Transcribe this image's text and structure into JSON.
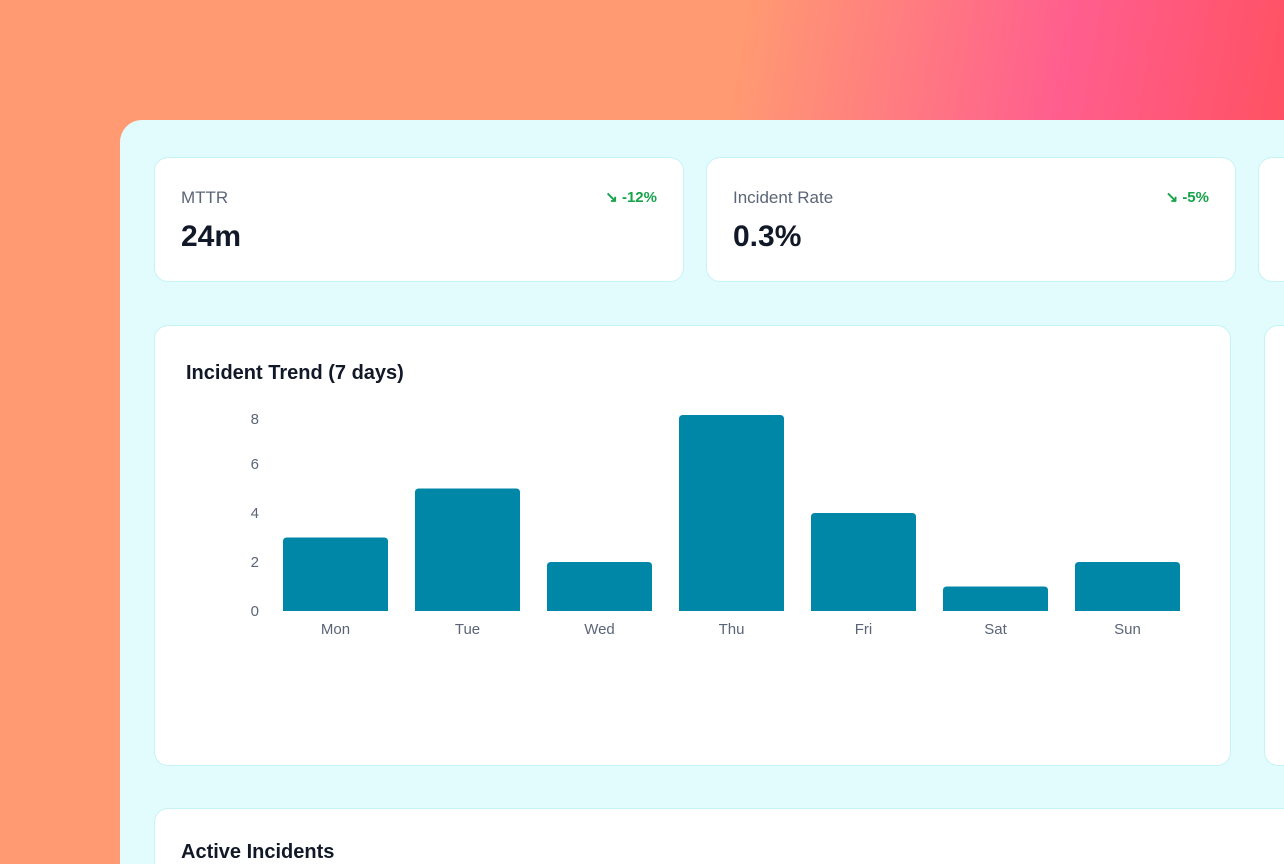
{
  "stats": [
    {
      "label": "MTTR",
      "value": "24m",
      "trend": "-12%",
      "trend_icon": "trend-down-icon"
    },
    {
      "label": "Incident Rate",
      "value": "0.3%",
      "trend": "-5%",
      "trend_icon": "trend-down-icon"
    }
  ],
  "colors": {
    "bar": "#0087a8",
    "trend_good": "#16a34a"
  },
  "chart_data": {
    "type": "bar",
    "title": "Incident Trend (7 days)",
    "categories": [
      "Mon",
      "Tue",
      "Wed",
      "Thu",
      "Fri",
      "Sat",
      "Sun"
    ],
    "values": [
      3,
      5,
      2,
      8,
      4,
      1,
      2
    ],
    "yticks": [
      0,
      2,
      4,
      6,
      8
    ],
    "ylim": [
      0,
      8
    ],
    "grid": false
  },
  "incidents": {
    "title": "Active Incidents"
  }
}
